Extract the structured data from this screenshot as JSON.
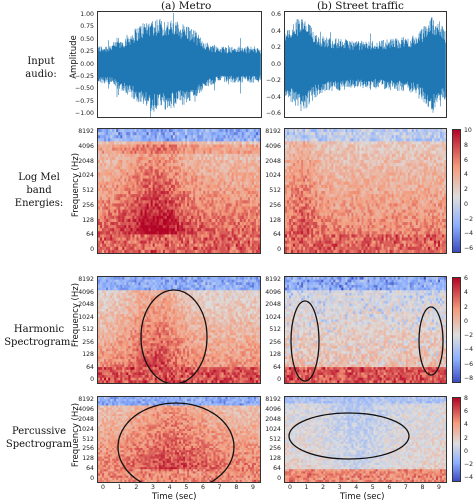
{
  "columns": [
    "(a) Metro",
    "(b) Street traffic"
  ],
  "rows": [
    {
      "label": "Input\naudio:"
    },
    {
      "label": "Log Mel\nband\nEnergies:"
    },
    {
      "label": "Harmonic\nSpectrogram:"
    },
    {
      "label": "Percussive\nSpectrogram"
    }
  ],
  "waveform": {
    "ylabel": "Amplitude",
    "metro_ticks": [
      "1.00",
      "0.75",
      "0.50",
      "0.25",
      "0.00",
      "−0.25",
      "−0.50",
      "−0.75",
      "−1.00"
    ],
    "traffic_ticks": [
      "0.6",
      "0.4",
      "0.2",
      "0.0",
      "−0.2",
      "−0.4",
      "−0.6"
    ],
    "color": "#1f77b4"
  },
  "spectrogram": {
    "ylabel": "Frequency (Hz)",
    "freq_ticks": [
      "8192",
      "4096",
      "2048",
      "1024",
      "512",
      "256",
      "128",
      "64",
      "0"
    ],
    "xlabel": "Time (sec)",
    "time_ticks": [
      "0",
      "1",
      "2",
      "3",
      "4",
      "5",
      "6",
      "7",
      "8",
      "9"
    ],
    "colorbars": [
      {
        "row": "log-mel",
        "ticks": [
          "10",
          "8",
          "6",
          "4",
          "2",
          "0",
          "−2",
          "−4",
          "−6"
        ]
      },
      {
        "row": "harmonic",
        "ticks": [
          "6",
          "4",
          "2",
          "0",
          "−2",
          "−4",
          "−6",
          "−8"
        ]
      },
      {
        "row": "percussive",
        "ticks": [
          "8",
          "6",
          "4",
          "2",
          "0",
          "−2",
          "−4"
        ]
      }
    ],
    "colormap": "coolwarm"
  }
}
